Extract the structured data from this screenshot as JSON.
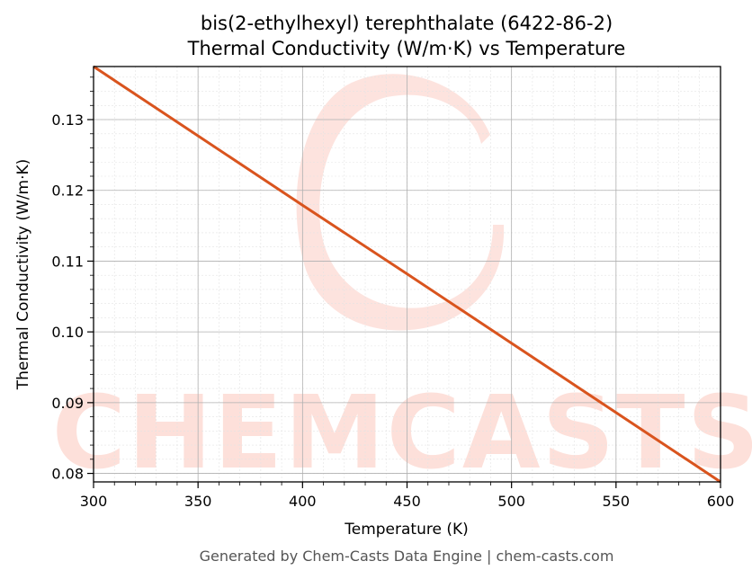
{
  "chart_data": {
    "type": "line",
    "title": "bis(2-ethylhexyl) terephthalate (6422-86-2)",
    "subtitle": "Thermal Conductivity (W/m·K) vs Temperature",
    "xlabel": "Temperature (K)",
    "ylabel": "Thermal Conductivity (W/m·K)",
    "xlim": [
      300,
      600
    ],
    "ylim": [
      0.0788,
      0.1375
    ],
    "xticks": [
      300,
      350,
      400,
      450,
      500,
      550,
      600
    ],
    "xtick_labels": [
      "300",
      "350",
      "400",
      "450",
      "500",
      "550",
      "600"
    ],
    "yticks": [
      0.08,
      0.09,
      0.1,
      0.11,
      0.12,
      0.13
    ],
    "ytick_labels": [
      "0.08",
      "0.09",
      "0.10",
      "0.11",
      "0.12",
      "0.13"
    ],
    "grid": true,
    "series": [
      {
        "color": "#d9541e",
        "x": [
          300,
          350,
          400,
          450,
          500,
          550,
          600
        ],
        "y": [
          0.1375,
          0.1277,
          0.1179,
          0.1082,
          0.0984,
          0.0886,
          0.0788
        ]
      }
    ],
    "watermark": "CHEMCASTS",
    "watermark_color": "#fde0da"
  },
  "footer": "Generated by Chem-Casts Data Engine | chem-casts.com"
}
